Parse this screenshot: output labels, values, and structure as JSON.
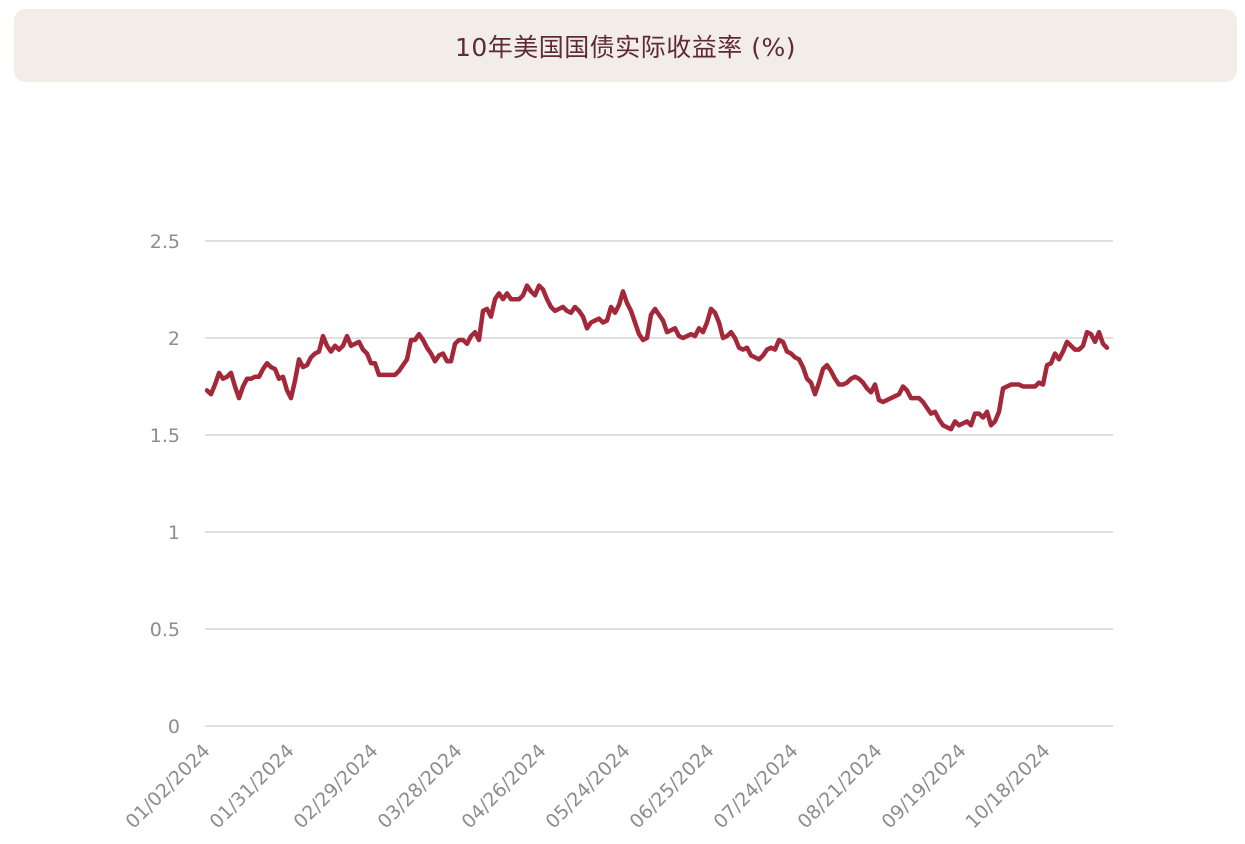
{
  "title": "10年美国国债实际收益率 (%)",
  "chart_data": {
    "type": "line",
    "title": "10年美国国债实际收益率 (%)",
    "xlabel": "",
    "ylabel": "",
    "ylim": [
      0,
      2.5
    ],
    "yticks": [
      "0",
      "0.5",
      "1",
      "1.5",
      "2",
      "2.5"
    ],
    "xtick_labels": [
      "01/02/2024",
      "01/31/2024",
      "02/29/2024",
      "03/28/2024",
      "04/26/2024",
      "05/24/2024",
      "06/25/2024",
      "07/24/2024",
      "08/21/2024",
      "09/19/2024",
      "10/18/2024"
    ],
    "grid": true,
    "line_color": "#a3283a",
    "series": [
      {
        "name": "",
        "values": [
          1.73,
          1.71,
          1.76,
          1.82,
          1.79,
          1.8,
          1.82,
          1.75,
          1.69,
          1.75,
          1.79,
          1.79,
          1.8,
          1.8,
          1.84,
          1.87,
          1.85,
          1.84,
          1.79,
          1.8,
          1.73,
          1.69,
          1.78,
          1.89,
          1.85,
          1.86,
          1.9,
          1.92,
          1.93,
          2.01,
          1.96,
          1.93,
          1.96,
          1.94,
          1.96,
          2.01,
          1.96,
          1.97,
          1.98,
          1.94,
          1.92,
          1.87,
          1.87,
          1.81,
          1.81,
          1.81,
          1.81,
          1.81,
          1.83,
          1.86,
          1.89,
          1.99,
          1.99,
          2.02,
          1.99,
          1.95,
          1.92,
          1.88,
          1.91,
          1.92,
          1.88,
          1.88,
          1.97,
          1.99,
          1.99,
          1.97,
          2.01,
          2.03,
          1.99,
          2.14,
          2.15,
          2.11,
          2.2,
          2.23,
          2.2,
          2.23,
          2.2,
          2.2,
          2.2,
          2.22,
          2.27,
          2.24,
          2.22,
          2.27,
          2.25,
          2.2,
          2.16,
          2.14,
          2.15,
          2.16,
          2.14,
          2.13,
          2.16,
          2.14,
          2.11,
          2.05,
          2.08,
          2.09,
          2.1,
          2.08,
          2.09,
          2.16,
          2.13,
          2.17,
          2.24,
          2.18,
          2.14,
          2.08,
          2.02,
          1.99,
          2.0,
          2.12,
          2.15,
          2.12,
          2.09,
          2.03,
          2.04,
          2.05,
          2.01,
          2.0,
          2.01,
          2.02,
          2.01,
          2.05,
          2.03,
          2.08,
          2.15,
          2.13,
          2.08,
          2.0,
          2.01,
          2.03,
          2.0,
          1.95,
          1.94,
          1.95,
          1.91,
          1.9,
          1.89,
          1.91,
          1.94,
          1.95,
          1.94,
          1.99,
          1.98,
          1.93,
          1.92,
          1.9,
          1.89,
          1.85,
          1.79,
          1.77,
          1.71,
          1.77,
          1.84,
          1.86,
          1.83,
          1.79,
          1.76,
          1.76,
          1.77,
          1.79,
          1.8,
          1.79,
          1.77,
          1.74,
          1.72,
          1.76,
          1.68,
          1.67,
          1.68,
          1.69,
          1.7,
          1.71,
          1.75,
          1.73,
          1.69,
          1.69,
          1.69,
          1.67,
          1.64,
          1.61,
          1.62,
          1.58,
          1.55,
          1.54,
          1.53,
          1.57,
          1.55,
          1.56,
          1.57,
          1.55,
          1.61,
          1.61,
          1.59,
          1.62,
          1.55,
          1.57,
          1.62,
          1.74,
          1.75,
          1.76,
          1.76,
          1.76,
          1.75,
          1.75,
          1.75,
          1.75,
          1.77,
          1.76,
          1.86,
          1.87,
          1.92,
          1.89,
          1.93,
          1.98,
          1.96,
          1.94,
          1.94,
          1.96,
          2.03,
          2.02,
          1.98,
          2.03,
          1.97,
          1.95
        ]
      }
    ]
  }
}
